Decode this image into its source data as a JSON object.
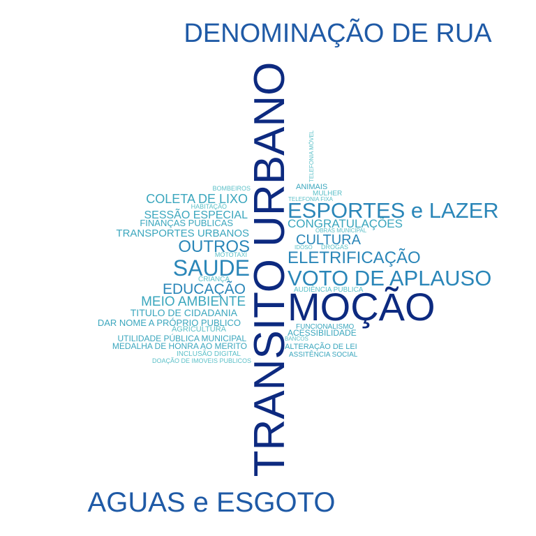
{
  "colors": {
    "dark": "#0d2a80",
    "mid": "#1f5aa6",
    "blue": "#2a86b8",
    "teal": "#3aa6bd",
    "light": "#5cc0c8"
  },
  "words": [
    {
      "text": "DENOMINAÇÃO DE RUA",
      "tone": "mid"
    },
    {
      "text": "TRANSITO URBANO",
      "tone": "dark"
    },
    {
      "text": "MOÇÃO",
      "tone": "dark"
    },
    {
      "text": "AGUAS e ESGOTO",
      "tone": "mid"
    },
    {
      "text": "ESPORTES e LAZER",
      "tone": "blue"
    },
    {
      "text": "VOTO DE APLAUSO",
      "tone": "blue"
    },
    {
      "text": "ELETRIFICAÇÃO",
      "tone": "blue"
    },
    {
      "text": "SAUDE",
      "tone": "blue"
    },
    {
      "text": "OUTROS",
      "tone": "blue"
    },
    {
      "text": "EDUCAÇÃO",
      "tone": "blue"
    },
    {
      "text": "MEIO AMBIENTE",
      "tone": "teal"
    },
    {
      "text": "CULTURA",
      "tone": "blue"
    },
    {
      "text": "CONGRATULAÇÕES",
      "tone": "teal"
    },
    {
      "text": "COLETA DE LIXO",
      "tone": "teal"
    },
    {
      "text": "SESSÃO ESPECIAL",
      "tone": "teal"
    },
    {
      "text": "TRANSPORTES URBANOS",
      "tone": "teal"
    },
    {
      "text": "FINANÇAS PUBLICAS",
      "tone": "teal"
    },
    {
      "text": "TITULO DE CIDADANIA",
      "tone": "teal"
    },
    {
      "text": "DAR NOME A PRÓPRIO PUBLICO",
      "tone": "teal"
    },
    {
      "text": "UTILIDADE PÚBLICA MUNICIPAL",
      "tone": "teal"
    },
    {
      "text": "MEDALHA DE HONRA AO MERITO",
      "tone": "teal"
    },
    {
      "text": "AGRICULTURA",
      "tone": "light"
    },
    {
      "text": "INCLUSÃO DIGITAL",
      "tone": "light"
    },
    {
      "text": "DOAÇÃO DE IMOVEIS PUBLICOS",
      "tone": "light"
    },
    {
      "text": "HABITAÇÃO",
      "tone": "light"
    },
    {
      "text": "BOMBEIROS",
      "tone": "light"
    },
    {
      "text": "MOTOTAXI",
      "tone": "light"
    },
    {
      "text": "CRIANÇA",
      "tone": "light"
    },
    {
      "text": "ANIMAIS",
      "tone": "teal"
    },
    {
      "text": "MULHER",
      "tone": "light"
    },
    {
      "text": "TELEFONIA FIXA",
      "tone": "light"
    },
    {
      "text": "TELEFONIA MÓVEL",
      "tone": "light"
    },
    {
      "text": "OBRAS MUNICIPAL",
      "tone": "light"
    },
    {
      "text": "IDOSO",
      "tone": "light"
    },
    {
      "text": "DROGAS",
      "tone": "light"
    },
    {
      "text": "AUDIÊNCIA PUBLICA",
      "tone": "light"
    },
    {
      "text": "FUNCIONALISMO",
      "tone": "teal"
    },
    {
      "text": "ACESSIBILIDADE",
      "tone": "teal"
    },
    {
      "text": "BANCOS",
      "tone": "light"
    },
    {
      "text": "ALTERAÇÃO DE LEI",
      "tone": "teal"
    },
    {
      "text": "ASSITÊNCIA SOCIAL",
      "tone": "teal"
    }
  ]
}
